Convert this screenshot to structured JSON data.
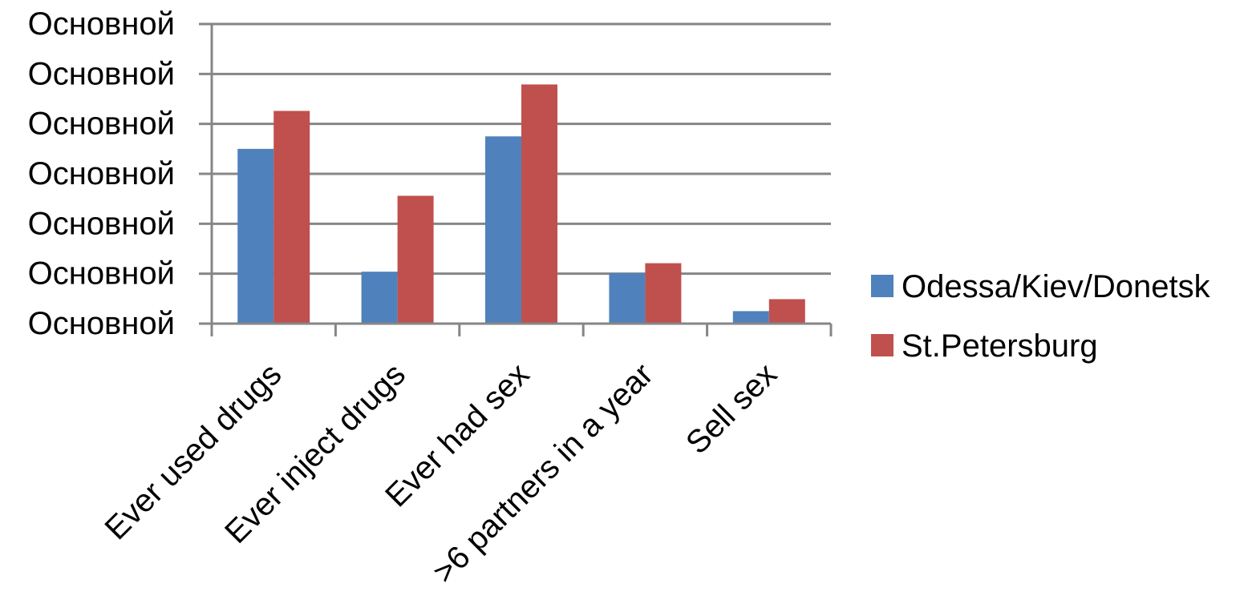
{
  "chart_data": {
    "type": "bar",
    "title": "",
    "xlabel": "",
    "ylabel": "",
    "categories": [
      "Ever used drugs",
      "Ever inject drugs",
      "Ever had sex",
      ">6 partners in a year",
      "Sell sex"
    ],
    "y_tick_labels": [
      "Основной",
      "Основной",
      "Основной",
      "Основной",
      "Основной",
      "Основной",
      "Основной"
    ],
    "ylim": [
      0,
      60
    ],
    "grid": true,
    "legend_position": "right",
    "series": [
      {
        "name": "Odessa/Kiev/Donetsk",
        "color": "#4F81BD",
        "values": [
          35,
          10.4,
          37.5,
          10.1,
          2.5
        ]
      },
      {
        "name": "St.Petersburg",
        "color": "#C0504D",
        "values": [
          42.6,
          25.6,
          47.9,
          12.1,
          4.9
        ]
      }
    ]
  }
}
